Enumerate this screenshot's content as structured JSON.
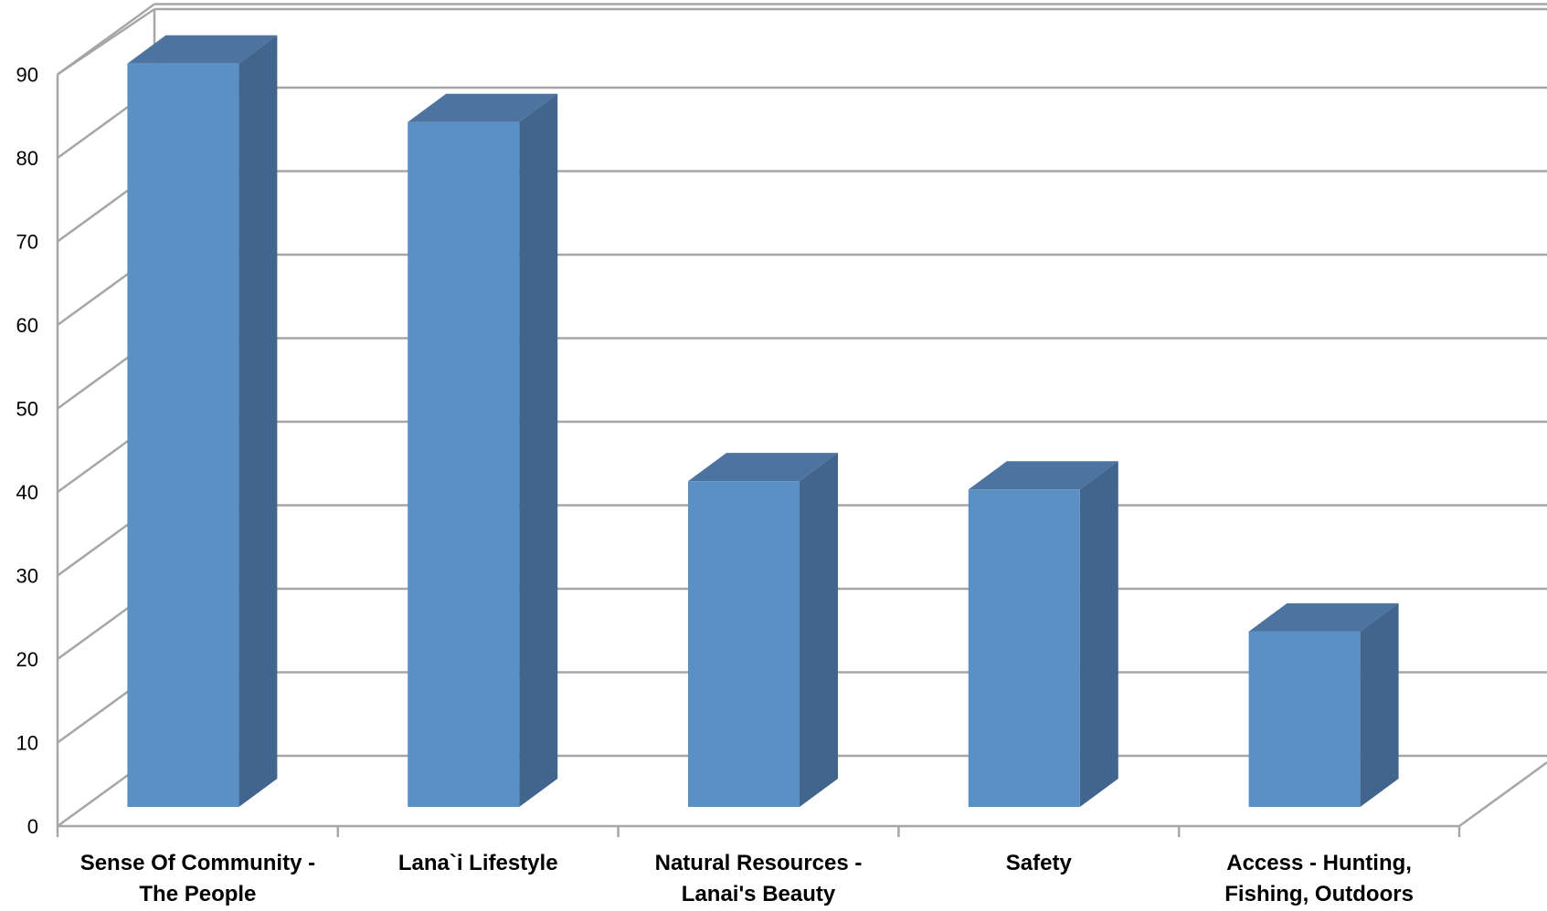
{
  "chart_data": {
    "type": "bar",
    "style": "3d-column",
    "categories": [
      [
        "Sense Of Community -",
        "The People"
      ],
      [
        "Lana`i Lifestyle"
      ],
      [
        "Natural Resources -",
        "Lanai's Beauty"
      ],
      [
        "Safety"
      ],
      [
        "Access - Hunting,",
        "Fishing, Outdoors"
      ]
    ],
    "values": [
      89,
      82,
      39,
      38,
      21
    ],
    "title": "",
    "xlabel": "",
    "ylabel": "",
    "ylim": [
      0,
      90
    ],
    "yticks": [
      0,
      10,
      20,
      30,
      40,
      50,
      60,
      70,
      80,
      90
    ],
    "grid": true,
    "legend": "none",
    "colors": {
      "bar_front": "#5b90c5",
      "bar_side": "#41658d",
      "bar_top": "#4d74a1",
      "grid": "#a6a6a6"
    }
  }
}
